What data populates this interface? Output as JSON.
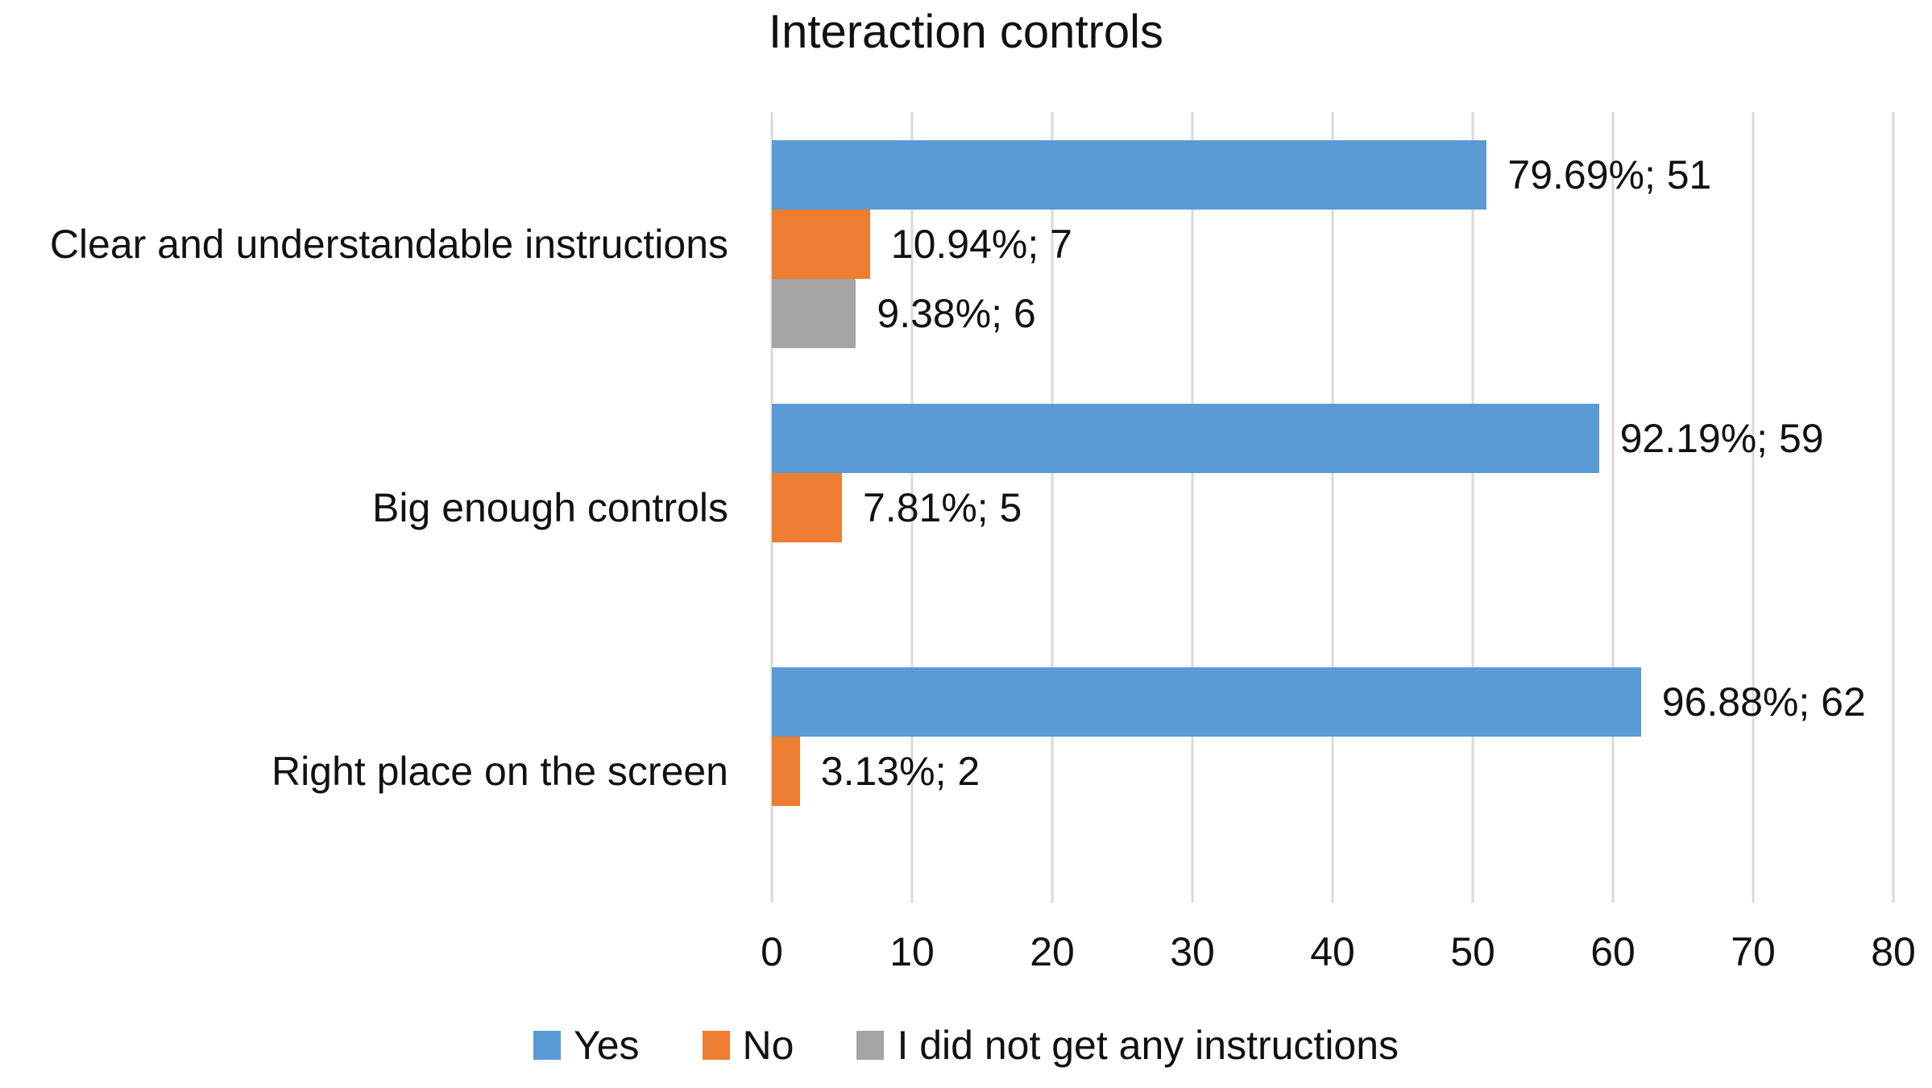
{
  "chart_data": {
    "type": "bar",
    "orientation": "horizontal",
    "title": "Interaction controls",
    "categories": [
      "Clear and understandable instructions",
      "Big enough controls",
      "Right place on the screen"
    ],
    "series": [
      {
        "name": "Yes",
        "color": "#5B9BD5",
        "values": [
          51,
          59,
          62
        ],
        "labels": [
          "79.69%; 51",
          "92.19%; 59",
          "96.88%; 62"
        ]
      },
      {
        "name": "No",
        "color": "#ED7D31",
        "values": [
          7,
          5,
          2
        ],
        "labels": [
          "10.94%; 7",
          "7.81%; 5",
          "3.13%; 2"
        ]
      },
      {
        "name": "I did not get any instructions",
        "color": "#A5A5A5",
        "values": [
          6,
          0,
          0
        ],
        "labels": [
          "9.38%; 6",
          null,
          null
        ]
      }
    ],
    "x_axis": {
      "min": 0,
      "max": 80,
      "tick_interval": 10,
      "ticks": [
        0,
        10,
        20,
        30,
        40,
        50,
        60,
        70,
        80
      ]
    },
    "legend_position": "bottom",
    "grid": true,
    "colors": {
      "gridline": "#D9D9D9",
      "text": "#111111",
      "background": "#FFFFFF"
    }
  }
}
